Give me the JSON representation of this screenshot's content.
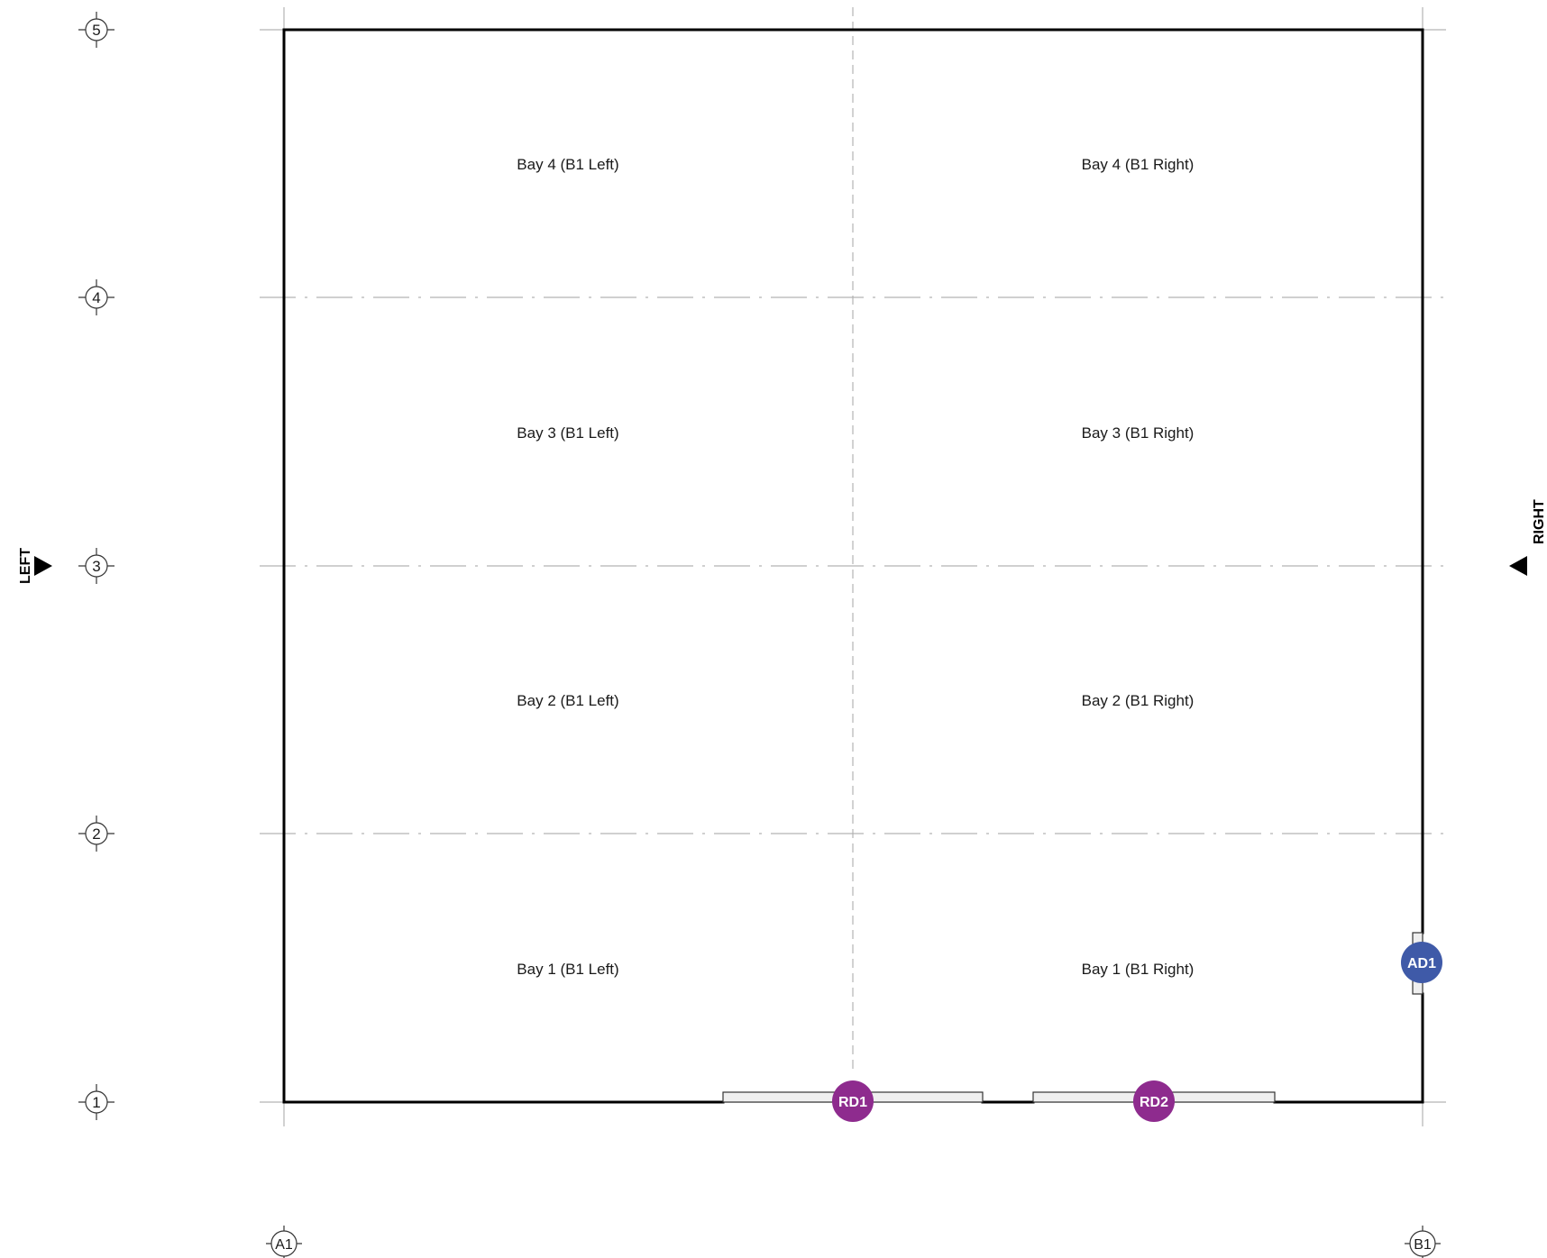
{
  "grid": {
    "rows": [
      "1",
      "2",
      "3",
      "4",
      "5"
    ],
    "columns": [
      "A1",
      "B1"
    ]
  },
  "bays": {
    "bay4_left": "Bay 4 (B1 Left)",
    "bay4_right": "Bay 4 (B1 Right)",
    "bay3_left": "Bay 3 (B1 Left)",
    "bay3_right": "Bay 3 (B1 Right)",
    "bay2_left": "Bay 2 (B1 Left)",
    "bay2_right": "Bay 2 (B1 Right)",
    "bay1_left": "Bay 1 (B1 Left)",
    "bay1_right": "Bay 1 (B1 Right)"
  },
  "doors": {
    "rd1": "RD1",
    "rd2": "RD2",
    "ad1": "AD1"
  },
  "view_markers": {
    "left": "LEFT",
    "right": "RIGHT"
  },
  "colors": {
    "roller_door_tag": "#8e2b8e",
    "access_door_tag": "#3f5aa8",
    "wall": "#000000",
    "grid_line": "#b3b3b3"
  }
}
